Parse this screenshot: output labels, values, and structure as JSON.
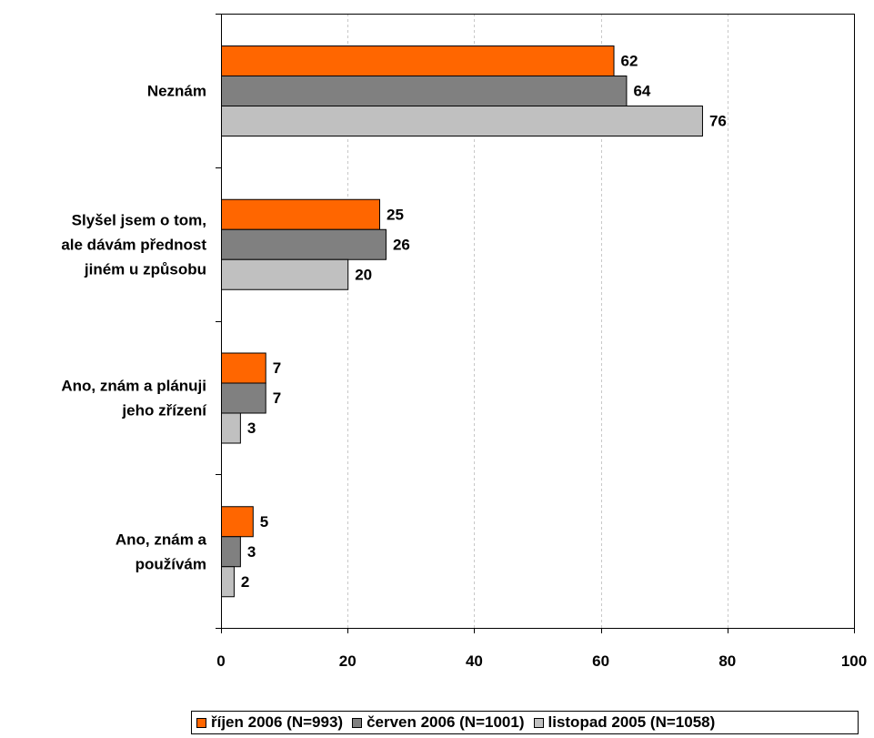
{
  "chart_data": {
    "type": "bar",
    "orientation": "horizontal",
    "categories": [
      [
        "Neznám"
      ],
      [
        "Slyšel jsem o tom,",
        "ale dávám přednost",
        "jiném u způsobu"
      ],
      [
        "Ano, znám a plánuji",
        "jeho zřízení"
      ],
      [
        "Ano, znám a",
        "používám"
      ]
    ],
    "series": [
      {
        "name": "říjen 2006 (N=993)",
        "color": "#ff6600",
        "values": [
          62,
          25,
          7,
          5
        ]
      },
      {
        "name": "červen 2006 (N=1001)",
        "color": "#808080",
        "values": [
          64,
          26,
          7,
          3
        ]
      },
      {
        "name": "listopad 2005 (N=1058)",
        "color": "#c0c0c0",
        "values": [
          76,
          20,
          3,
          2
        ]
      }
    ],
    "xlim": [
      0,
      100
    ],
    "xticks": [
      "0",
      "20",
      "40",
      "60",
      "80",
      "100"
    ],
    "grid": "vertical dashed",
    "legend_position": "bottom"
  }
}
